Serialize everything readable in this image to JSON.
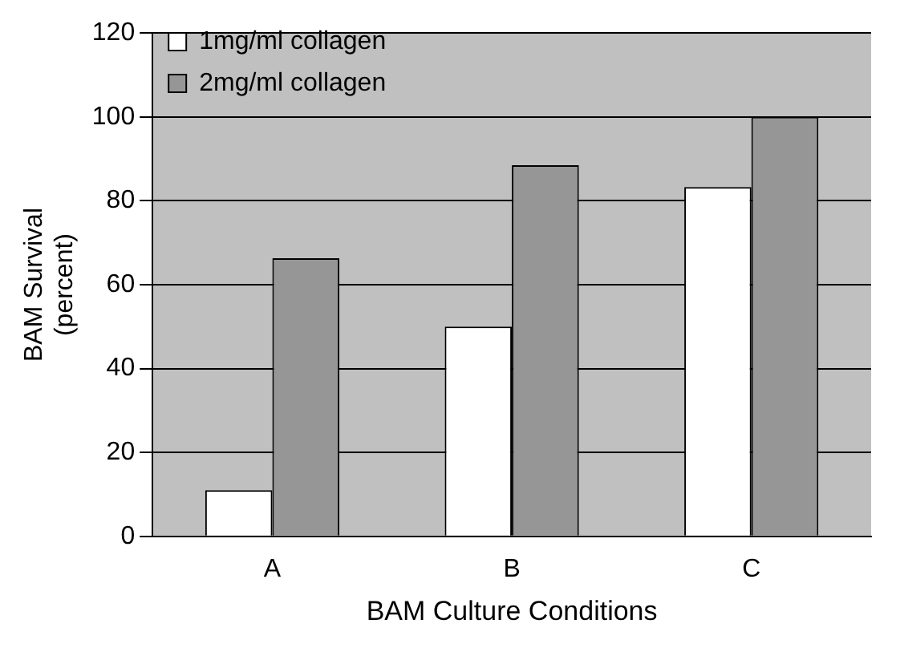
{
  "chart_data": {
    "type": "bar",
    "xlabel": "BAM Culture Conditions",
    "ylabel": "BAM Survival\n(percent)",
    "categories": [
      "A",
      "B",
      "C"
    ],
    "series": [
      {
        "name": "1mg/ml collagen",
        "color": "#ffffff",
        "values": [
          11,
          50,
          83.3
        ]
      },
      {
        "name": "2mg/ml collagen",
        "color": "#969696",
        "values": [
          66.3,
          88.5,
          100
        ]
      }
    ],
    "ylim": [
      0,
      120
    ],
    "yticks": [
      0,
      20,
      40,
      60,
      80,
      100,
      120
    ],
    "grid": "y",
    "legend": "top left"
  }
}
